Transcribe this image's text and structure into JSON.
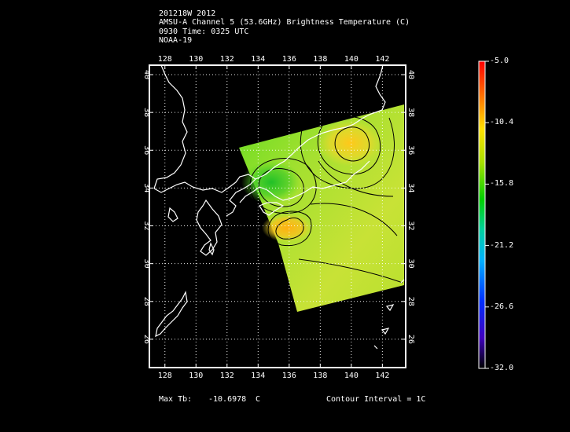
{
  "header": {
    "lines": [
      "201218W 2012",
      "AMSU-A Channel 5 (53.6GHz) Brightness Temperature (C)",
      "0930 Time: 0325 UTC",
      "NOAA-19"
    ]
  },
  "map": {
    "lon_ticks": [
      "128",
      "130",
      "132",
      "134",
      "136",
      "138",
      "140",
      "142"
    ],
    "lat_ticks": [
      "40",
      "38",
      "36",
      "34",
      "32",
      "30",
      "28",
      "26"
    ],
    "lon_range": [
      127,
      143.5
    ],
    "lat_range": [
      24.5,
      40.5
    ],
    "grid": true,
    "colors": {
      "background": "#000000",
      "coastline": "#ffffff",
      "gridline": "#ffffff",
      "contour": "#000000"
    }
  },
  "colorbar": {
    "labels": [
      "-5.0",
      "-10.4",
      "-15.8",
      "-21.2",
      "-26.6",
      "-32.0"
    ],
    "range": [
      -32.0,
      -5.0
    ]
  },
  "footer": {
    "max_label": "Max Tb:",
    "max_value": "-10.6978",
    "max_unit": "C",
    "contour_interval": "Contour Interval = 1C"
  }
}
